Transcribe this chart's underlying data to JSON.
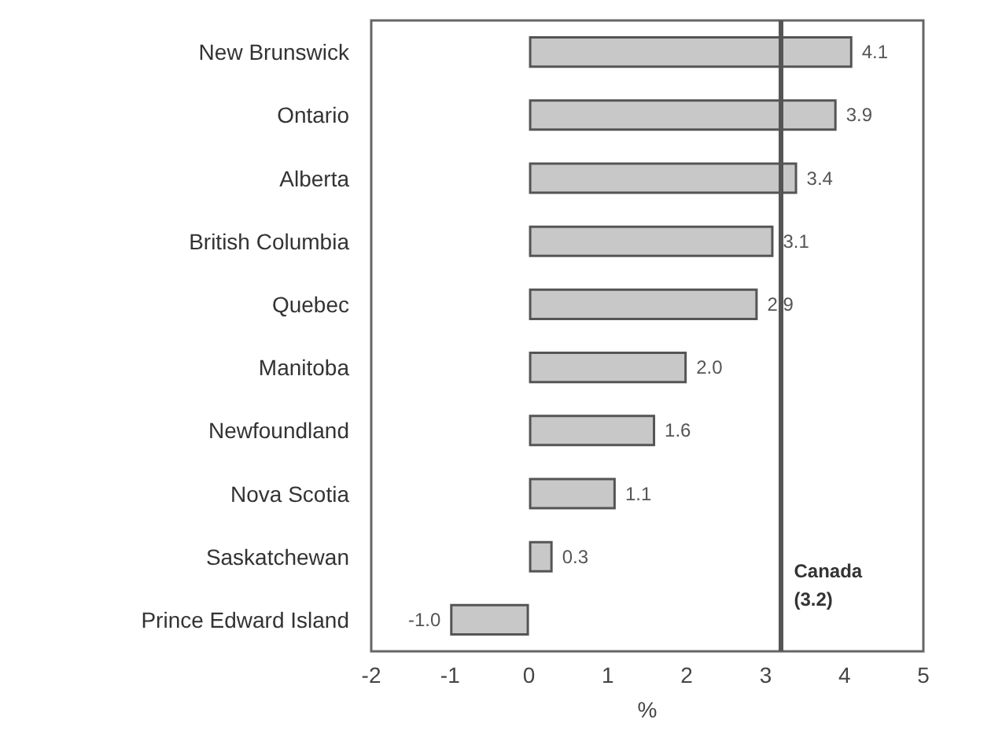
{
  "chart_data": {
    "type": "bar",
    "orientation": "horizontal",
    "xlabel": "%",
    "categories": [
      "New Brunswick",
      "Ontario",
      "Alberta",
      "British Columbia",
      "Quebec",
      "Manitoba",
      "Newfoundland",
      "Nova Scotia",
      "Saskatchewan",
      "Prince Edward Island"
    ],
    "values": [
      4.1,
      3.9,
      3.4,
      3.1,
      2.9,
      2.0,
      1.6,
      1.1,
      0.3,
      -1.0
    ],
    "color": "#c8c8c8",
    "value_labels": [
      "4.1",
      "3.9",
      "3.4",
      "3.1",
      "2.9",
      "2.0",
      "1.6",
      "1.1",
      "0.3",
      "-1.0"
    ],
    "xlim": [
      -2,
      5
    ],
    "xticks": [
      -2,
      -1,
      0,
      1,
      2,
      3,
      4,
      5
    ],
    "grid": false,
    "ref_lines": [
      {
        "axis": "x",
        "value": 3.2,
        "label": "Canada\n(3.2)",
        "color": "#555555"
      }
    ]
  }
}
